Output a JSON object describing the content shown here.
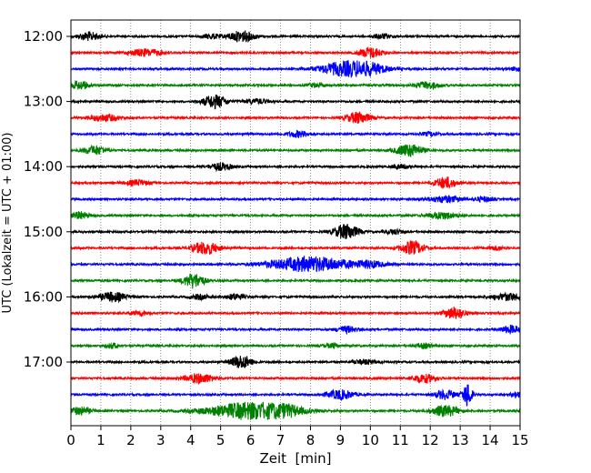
{
  "chart_data": {
    "type": "line",
    "subtype": "helicorder",
    "xlabel": "Zeit  [min]",
    "ylabel": "UTC (Lokalzeit = UTC + 01:00)",
    "xlim": [
      0,
      15
    ],
    "x_ticks": [
      "0",
      "1",
      "2",
      "3",
      "4",
      "5",
      "6",
      "7",
      "8",
      "9",
      "10",
      "11",
      "12",
      "13",
      "14",
      "15"
    ],
    "y_tick_labels": [
      "12:00",
      "13:00",
      "14:00",
      "15:00",
      "16:00",
      "17:00"
    ],
    "grid": {
      "vertical": true,
      "style": "dotted"
    },
    "trace_interval_min": 15,
    "trace_colors": [
      "#000000",
      "#ff0000",
      "#0000ff",
      "#008000"
    ],
    "traces": [
      {
        "start": "12:00",
        "events": [
          {
            "t": 0.6,
            "a": 0.55,
            "w": 0.35
          },
          {
            "t": 4.7,
            "a": 0.3,
            "w": 0.3
          },
          {
            "t": 5.7,
            "a": 0.7,
            "w": 0.45
          },
          {
            "t": 10.4,
            "a": 0.3,
            "w": 0.3
          }
        ]
      },
      {
        "start": "12:15",
        "events": [
          {
            "t": 2.5,
            "a": 0.45,
            "w": 0.6
          },
          {
            "t": 10.0,
            "a": 0.65,
            "w": 0.4
          }
        ]
      },
      {
        "start": "12:30",
        "events": [
          {
            "t": 9.2,
            "a": 0.9,
            "w": 0.9
          },
          {
            "t": 10.0,
            "a": 0.45,
            "w": 0.6
          },
          {
            "t": 14.9,
            "a": 0.3,
            "w": 0.2
          }
        ]
      },
      {
        "start": "12:45",
        "events": [
          {
            "t": 0.3,
            "a": 0.55,
            "w": 0.3
          },
          {
            "t": 8.2,
            "a": 0.25,
            "w": 0.3
          },
          {
            "t": 11.9,
            "a": 0.45,
            "w": 0.4
          }
        ]
      },
      {
        "start": "13:00",
        "events": [
          {
            "t": 4.8,
            "a": 0.85,
            "w": 0.4
          },
          {
            "t": 6.2,
            "a": 0.3,
            "w": 0.4
          }
        ]
      },
      {
        "start": "13:15",
        "events": [
          {
            "t": 1.1,
            "a": 0.45,
            "w": 0.5
          },
          {
            "t": 9.6,
            "a": 0.75,
            "w": 0.4
          }
        ]
      },
      {
        "start": "13:30",
        "events": [
          {
            "t": 7.6,
            "a": 0.4,
            "w": 0.35
          },
          {
            "t": 12.0,
            "a": 0.25,
            "w": 0.3
          }
        ]
      },
      {
        "start": "13:45",
        "events": [
          {
            "t": 0.8,
            "a": 0.55,
            "w": 0.4
          },
          {
            "t": 11.3,
            "a": 0.8,
            "w": 0.45
          }
        ]
      },
      {
        "start": "14:00",
        "events": [
          {
            "t": 5.0,
            "a": 0.45,
            "w": 0.4
          },
          {
            "t": 11.0,
            "a": 0.25,
            "w": 0.3
          }
        ]
      },
      {
        "start": "14:15",
        "events": [
          {
            "t": 2.2,
            "a": 0.35,
            "w": 0.4
          },
          {
            "t": 12.5,
            "a": 0.75,
            "w": 0.35
          }
        ]
      },
      {
        "start": "14:30",
        "events": [
          {
            "t": 12.5,
            "a": 0.4,
            "w": 0.6
          },
          {
            "t": 13.8,
            "a": 0.3,
            "w": 0.3
          }
        ]
      },
      {
        "start": "14:45",
        "events": [
          {
            "t": 0.3,
            "a": 0.45,
            "w": 0.3
          },
          {
            "t": 12.4,
            "a": 0.45,
            "w": 0.5
          }
        ]
      },
      {
        "start": "15:00",
        "events": [
          {
            "t": 9.2,
            "a": 1.0,
            "w": 0.4
          },
          {
            "t": 10.8,
            "a": 0.3,
            "w": 0.3
          }
        ]
      },
      {
        "start": "15:15",
        "events": [
          {
            "t": 4.5,
            "a": 0.8,
            "w": 0.45
          },
          {
            "t": 11.4,
            "a": 0.85,
            "w": 0.4
          },
          {
            "t": 14.2,
            "a": 0.25,
            "w": 0.3
          }
        ]
      },
      {
        "start": "15:30",
        "events": [
          {
            "t": 8.0,
            "a": 0.95,
            "w": 1.4
          },
          {
            "t": 10.0,
            "a": 0.35,
            "w": 0.5
          }
        ]
      },
      {
        "start": "15:45",
        "events": [
          {
            "t": 4.1,
            "a": 0.95,
            "w": 0.35
          }
        ]
      },
      {
        "start": "16:00",
        "events": [
          {
            "t": 1.4,
            "a": 0.6,
            "w": 0.45
          },
          {
            "t": 4.3,
            "a": 0.3,
            "w": 0.3
          },
          {
            "t": 5.5,
            "a": 0.4,
            "w": 0.3
          },
          {
            "t": 14.6,
            "a": 0.45,
            "w": 0.5
          }
        ]
      },
      {
        "start": "16:15",
        "events": [
          {
            "t": 2.3,
            "a": 0.3,
            "w": 0.3
          },
          {
            "t": 12.8,
            "a": 0.75,
            "w": 0.35
          }
        ]
      },
      {
        "start": "16:30",
        "events": [
          {
            "t": 9.2,
            "a": 0.4,
            "w": 0.35
          },
          {
            "t": 14.7,
            "a": 0.5,
            "w": 0.35
          }
        ]
      },
      {
        "start": "16:45",
        "events": [
          {
            "t": 1.4,
            "a": 0.3,
            "w": 0.25
          },
          {
            "t": 8.7,
            "a": 0.25,
            "w": 0.3
          },
          {
            "t": 11.8,
            "a": 0.3,
            "w": 0.3
          }
        ]
      },
      {
        "start": "17:00",
        "events": [
          {
            "t": 5.7,
            "a": 0.85,
            "w": 0.35
          },
          {
            "t": 9.8,
            "a": 0.3,
            "w": 0.4
          }
        ]
      },
      {
        "start": "17:15",
        "events": [
          {
            "t": 4.3,
            "a": 0.6,
            "w": 0.5
          },
          {
            "t": 11.8,
            "a": 0.55,
            "w": 0.4
          }
        ]
      },
      {
        "start": "17:30",
        "events": [
          {
            "t": 9.0,
            "a": 0.6,
            "w": 0.45
          },
          {
            "t": 12.5,
            "a": 0.6,
            "w": 0.35
          },
          {
            "t": 13.25,
            "a": 1.6,
            "w": 0.15
          },
          {
            "t": 14.9,
            "a": 0.4,
            "w": 0.2
          }
        ]
      },
      {
        "start": "17:45",
        "events": [
          {
            "t": 0.3,
            "a": 0.5,
            "w": 0.35
          },
          {
            "t": 6.0,
            "a": 1.1,
            "w": 1.4
          },
          {
            "t": 7.2,
            "a": 0.4,
            "w": 0.5
          },
          {
            "t": 12.5,
            "a": 0.7,
            "w": 0.45
          }
        ]
      }
    ]
  }
}
